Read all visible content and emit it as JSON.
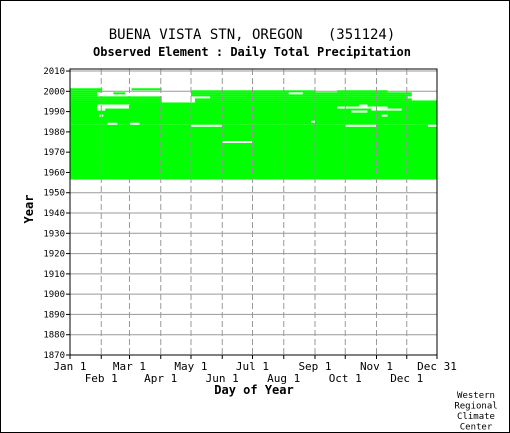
{
  "chart_data": {
    "type": "timeline",
    "title": "BUENA VISTA STN, OREGON   (351124)",
    "subtitle": "Observed Element : Daily Total Precipitation",
    "xlabel": "Day of Year",
    "ylabel": "Year",
    "ylim": [
      1870,
      2011
    ],
    "y_ticks": [
      1870,
      1880,
      1890,
      1900,
      1910,
      1920,
      1930,
      1940,
      1950,
      1960,
      1970,
      1980,
      1990,
      2000,
      2010
    ],
    "x_ticks_upper": [
      {
        "label": "Jan 1",
        "day": 1
      },
      {
        "label": "Mar 1",
        "day": 60
      },
      {
        "label": "May 1",
        "day": 121
      },
      {
        "label": "Jul 1",
        "day": 182
      },
      {
        "label": "Sep 1",
        "day": 244
      },
      {
        "label": "Nov 1",
        "day": 305
      },
      {
        "label": "Dec 31",
        "day": 365
      }
    ],
    "x_ticks_lower": [
      {
        "label": "Feb 1",
        "day": 32
      },
      {
        "label": "Apr 1",
        "day": 91
      },
      {
        "label": "Jun 1",
        "day": 152
      },
      {
        "label": "Aug 1",
        "day": 213
      },
      {
        "label": "Oct 1",
        "day": 274
      },
      {
        "label": "Dec 1",
        "day": 335
      }
    ],
    "grid": true,
    "data_color": "#00ff00",
    "data_coverage": [
      {
        "year_start": 1956.5,
        "year_end": 1957.5,
        "day_start": 1,
        "day_end": 215
      },
      {
        "year_start": 1956.5,
        "year_end": 1957.5,
        "day_start": 215,
        "day_end": 365
      },
      {
        "year_start": 1957.5,
        "year_end": 1983.5,
        "day_start": 1,
        "day_end": 365
      },
      {
        "year_start": 1983.5,
        "year_end": 1994.5,
        "day_start": 1,
        "day_end": 365
      },
      {
        "year_start": 1994.5,
        "year_end": 1995.5,
        "day_start": 1,
        "day_end": 92
      },
      {
        "year_start": 1994.5,
        "year_end": 1995.5,
        "day_start": 125,
        "day_end": 365
      },
      {
        "year_start": 1995.5,
        "year_end": 1996.5,
        "day_start": 1,
        "day_end": 92
      },
      {
        "year_start": 1995.5,
        "year_end": 1996.5,
        "day_start": 125,
        "day_end": 340
      },
      {
        "year_start": 1996.5,
        "year_end": 1997.5,
        "day_start": 1,
        "day_end": 92
      },
      {
        "year_start": 1996.5,
        "year_end": 1997.5,
        "day_start": 140,
        "day_end": 336
      },
      {
        "year_start": 1997.5,
        "year_end": 1998.5,
        "day_start": 1,
        "day_end": 28
      },
      {
        "year_start": 1997.5,
        "year_end": 1998.5,
        "day_start": 121,
        "day_end": 340
      },
      {
        "year_start": 1998.5,
        "year_end": 1999.5,
        "day_start": 1,
        "day_end": 28
      },
      {
        "year_start": 1998.5,
        "year_end": 1999.5,
        "day_start": 44,
        "day_end": 56
      },
      {
        "year_start": 1998.5,
        "year_end": 1999.5,
        "day_start": 121,
        "day_end": 218
      },
      {
        "year_start": 1998.5,
        "year_end": 1999.5,
        "day_start": 232,
        "day_end": 340
      },
      {
        "year_start": 1999.5,
        "year_end": 2000.5,
        "day_start": 1,
        "day_end": 33
      },
      {
        "year_start": 1999.5,
        "year_end": 2000.5,
        "day_start": 121,
        "day_end": 244
      },
      {
        "year_start": 1999.5,
        "year_end": 2000.5,
        "day_start": 266,
        "day_end": 316
      },
      {
        "year_start": 2000.5,
        "year_end": 2001.5,
        "day_start": 1,
        "day_end": 33
      },
      {
        "year_start": 2000.5,
        "year_end": 2001.5,
        "day_start": 62,
        "day_end": 92
      }
    ],
    "data_gaps": [
      {
        "year_start": 1982.5,
        "year_end": 1983.5,
        "day_start": 121,
        "day_end": 152
      },
      {
        "year_start": 1982.5,
        "year_end": 1983.5,
        "day_start": 274,
        "day_end": 305
      },
      {
        "year_start": 1982.5,
        "year_end": 1983.5,
        "day_start": 356,
        "day_end": 365
      },
      {
        "year_start": 1983.5,
        "year_end": 1984.5,
        "day_start": 38,
        "day_end": 48
      },
      {
        "year_start": 1983.5,
        "year_end": 1984.5,
        "day_start": 60,
        "day_end": 70
      },
      {
        "year_start": 1984.5,
        "year_end": 1985.5,
        "day_start": 240,
        "day_end": 244
      },
      {
        "year_start": 1987.5,
        "year_end": 1988.5,
        "day_start": 30,
        "day_end": 34
      },
      {
        "year_start": 1987.5,
        "year_end": 1988.5,
        "day_start": 310,
        "day_end": 316
      },
      {
        "year_start": 1989.5,
        "year_end": 1990.5,
        "day_start": 280,
        "day_end": 296
      },
      {
        "year_start": 1990.5,
        "year_end": 1991.5,
        "day_start": 28,
        "day_end": 36
      },
      {
        "year_start": 1990.5,
        "year_end": 1991.5,
        "day_start": 300,
        "day_end": 330
      },
      {
        "year_start": 1991.5,
        "year_end": 1992.5,
        "day_start": 28,
        "day_end": 60
      },
      {
        "year_start": 1991.5,
        "year_end": 1992.5,
        "day_start": 266,
        "day_end": 316
      },
      {
        "year_start": 1992.5,
        "year_end": 1993.5,
        "day_start": 28,
        "day_end": 60
      },
      {
        "year_start": 1992.5,
        "year_end": 1993.5,
        "day_start": 288,
        "day_end": 296
      },
      {
        "year_start": 1974.5,
        "year_end": 1975.5,
        "day_start": 152,
        "day_end": 182
      }
    ],
    "credit": [
      "Western",
      "Regional",
      "Climate",
      "Center"
    ]
  }
}
